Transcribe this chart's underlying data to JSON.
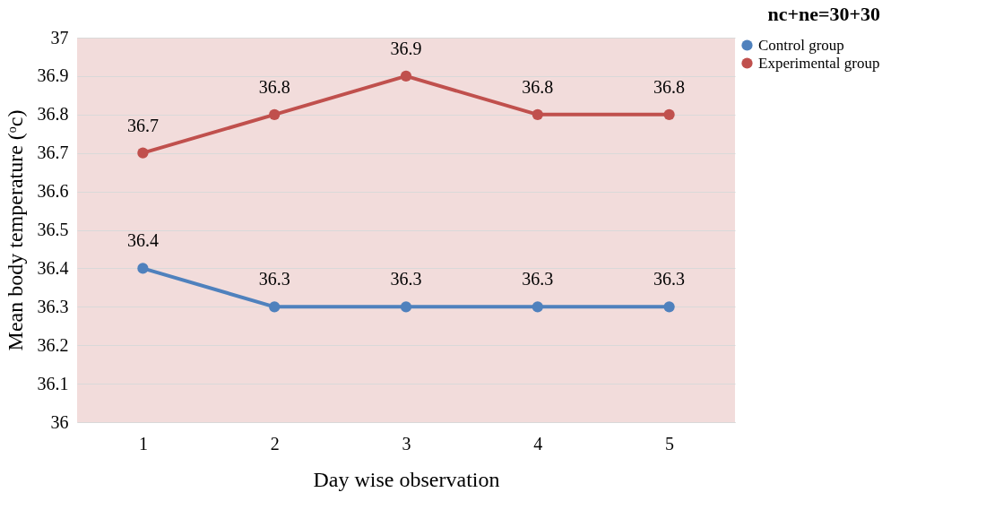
{
  "chart_data": {
    "type": "line",
    "title": "nc+ne=30+30",
    "xlabel": "Day wise observation",
    "ylabel": "Mean body temperature (ᵒc)",
    "categories": [
      "1",
      "2",
      "3",
      "4",
      "5"
    ],
    "series": [
      {
        "name": "Control group",
        "color": "#4f81bd",
        "values": [
          36.4,
          36.3,
          36.3,
          36.3,
          36.3
        ]
      },
      {
        "name": "Experimental group",
        "color": "#c0504d",
        "values": [
          36.7,
          36.8,
          36.9,
          36.8,
          36.8
        ]
      }
    ],
    "ylim": [
      36,
      37
    ],
    "yticks": [
      36,
      36.1,
      36.2,
      36.3,
      36.4,
      36.5,
      36.6,
      36.7,
      36.8,
      36.9,
      37
    ],
    "grid": "y",
    "legend": "right",
    "marker": "circle",
    "line_style": "solid",
    "data_labels": true
  }
}
